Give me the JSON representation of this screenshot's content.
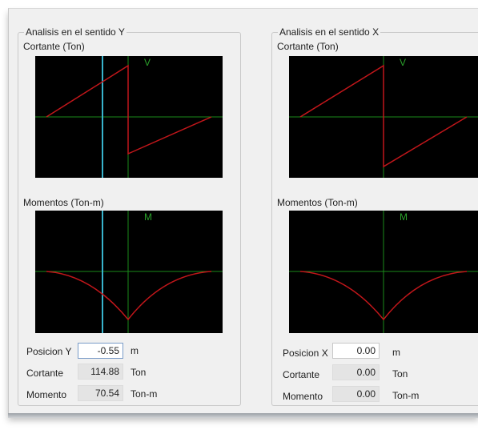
{
  "colors": {
    "plot_bg": "#000000",
    "axis": "#1a8a1a",
    "curve": "#c0161a",
    "cursor": "#38b4cc",
    "axis_label": "#2aa02a"
  },
  "panel_y": {
    "title": "Analisis en el sentido Y",
    "shear_label": "Cortante (Ton)",
    "shear_axis_label": "V",
    "moment_label": "Momentos (Ton-m)",
    "moment_axis_label": "M",
    "position_label": "Posicion Y",
    "position_value": "-0.55",
    "position_unit": "m",
    "shear_field_label": "Cortante",
    "shear_value": "114.88",
    "shear_unit": "Ton",
    "moment_field_label": "Momento",
    "moment_value": "70.54",
    "moment_unit": "Ton-m"
  },
  "panel_x": {
    "title": "Analisis en el sentido X",
    "shear_label": "Cortante (Ton)",
    "shear_axis_label": "V",
    "moment_label": "Momentos (Ton-m)",
    "moment_axis_label": "M",
    "position_label": "Posicion X",
    "position_value": "0.00",
    "position_unit": "m",
    "shear_field_label": "Cortante",
    "shear_value": "0.00",
    "shear_unit": "Ton",
    "moment_field_label": "Momento",
    "moment_value": "0.00",
    "moment_unit": "Ton-m"
  }
}
